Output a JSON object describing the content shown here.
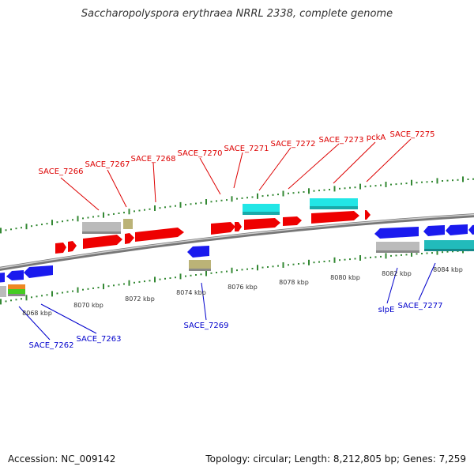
{
  "title": "Saccharopolyspora erythraea NRRL 2338, complete genome",
  "footer": {
    "accession": "Accession: NC_009142",
    "topology": "Topology: circular; Length: 8,212,805 bp; Genes: 7,259"
  },
  "colors": {
    "forward_label": "#dd0000",
    "reverse_label": "#0000cc",
    "tick": "#338833",
    "backbone": "#888888",
    "gene_red": "#ee0000",
    "gene_blue": "#1a1aee",
    "gene_gray": "#bbbbbb",
    "gene_cyan": "#22e6e6",
    "gene_teal": "#22bbbb",
    "gene_khaki": "#bbb377",
    "gene_orange": "#ee8822",
    "gene_green": "#44cc22"
  },
  "scale_labels": [
    "8068 kbp",
    "8070 kbp",
    "8072 kbp",
    "8074 kbp",
    "8076 kbp",
    "8078 kbp",
    "8080 kbp",
    "8082 kbp",
    "8084 kbp"
  ],
  "forward_genes": [
    "SACE_7266",
    "SACE_7267",
    "SACE_7268",
    "SACE_7270",
    "SACE_7271",
    "SACE_7272",
    "SACE_7273",
    "pckA",
    "SACE_7275"
  ],
  "reverse_genes": [
    "SACE_7262",
    "SACE_7263",
    "SACE_7269",
    "slpE",
    "SACE_7277"
  ]
}
